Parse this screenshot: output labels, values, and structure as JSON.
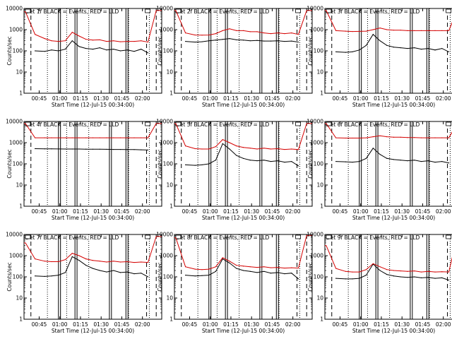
{
  "colors": {
    "events": "#000000",
    "lld": "#d40000",
    "axes": "#000000"
  },
  "shared": {
    "ylabel": "Counts/sec",
    "xlabel": "Start Time (12-Jul-15 00:34:00)",
    "xticks": [
      "00:45",
      "01:00",
      "01:15",
      "01:30",
      "01:45",
      "02:00"
    ],
    "yticks": [
      "1",
      "10",
      "100",
      "1000",
      "10000"
    ],
    "scale": "log",
    "xlim_minutes": [
      0,
      100
    ],
    "ylim": [
      1,
      10000
    ],
    "vline_dashed": [
      5,
      89,
      96
    ],
    "vline_dotted": [
      17,
      31,
      47,
      76,
      91
    ],
    "vline_solid": [
      25,
      26.5,
      37,
      38.5,
      62,
      63.5,
      74,
      75.5
    ]
  },
  "chart_data": [
    {
      "type": "line",
      "title": "Det 1f BLACK = Events, RED = LLD",
      "x": [
        8,
        15,
        20,
        25,
        30,
        35,
        40,
        45,
        50,
        55,
        60,
        65,
        70,
        75,
        80,
        85,
        90
      ],
      "series": [
        {
          "name": "Events",
          "values": [
            100,
            95,
            110,
            100,
            120,
            300,
            160,
            130,
            120,
            140,
            110,
            120,
            100,
            110,
            95,
            120,
            80
          ]
        },
        {
          "name": "LLD",
          "values": [
            600,
            380,
            300,
            280,
            300,
            750,
            500,
            350,
            320,
            330,
            280,
            300,
            270,
            280,
            280,
            300,
            260
          ]
        }
      ],
      "lld_ends": {
        "start": 7000,
        "end": 8000
      }
    },
    {
      "type": "line",
      "title": "Det 2f BLACK = Events, RED = LLD",
      "x": [
        8,
        15,
        20,
        25,
        30,
        35,
        40,
        45,
        50,
        55,
        60,
        65,
        70,
        75,
        80,
        85,
        90
      ],
      "series": [
        {
          "name": "Events",
          "values": [
            280,
            260,
            270,
            300,
            320,
            350,
            380,
            330,
            320,
            300,
            310,
            290,
            290,
            300,
            280,
            290,
            260
          ]
        },
        {
          "name": "LLD",
          "values": [
            700,
            560,
            550,
            560,
            650,
            900,
            1100,
            900,
            900,
            800,
            800,
            700,
            650,
            700,
            650,
            700,
            600
          ]
        }
      ],
      "lld_ends": {
        "start": 8000,
        "end": 8000
      }
    },
    {
      "type": "line",
      "title": "Det 3f BLACK = Events, RED = LLD",
      "x": [
        8,
        15,
        20,
        25,
        30,
        35,
        40,
        45,
        50,
        55,
        60,
        65,
        70,
        75,
        80,
        85,
        90
      ],
      "series": [
        {
          "name": "Events",
          "values": [
            90,
            85,
            90,
            110,
            180,
            600,
            300,
            180,
            150,
            140,
            130,
            140,
            120,
            130,
            110,
            130,
            90
          ]
        },
        {
          "name": "LLD",
          "values": [
            900,
            850,
            820,
            830,
            850,
            1000,
            1200,
            1000,
            950,
            950,
            900,
            900,
            900,
            900,
            900,
            900,
            900
          ]
        }
      ],
      "lld_ends": {
        "start": 8000,
        "end": 8000
      }
    },
    {
      "type": "line",
      "title": "Det 4f BLACK = Events, RED = LLD",
      "x": [
        8,
        15,
        20,
        25,
        30,
        35,
        40,
        45,
        50,
        55,
        60,
        65,
        70,
        75,
        80,
        85,
        90
      ],
      "series": [
        {
          "name": "Events",
          "values": [
            520,
            510,
            510,
            505,
            500,
            500,
            500,
            495,
            490,
            490,
            485,
            480,
            480,
            470,
            470,
            460,
            450
          ]
        },
        {
          "name": "LLD",
          "values": [
            1700,
            1700,
            1700,
            1700,
            1700,
            1700,
            1700,
            1700,
            1700,
            1700,
            1700,
            1700,
            1700,
            1700,
            1700,
            1700,
            1700
          ]
        }
      ],
      "lld_ends": {
        "start": 8000,
        "end": 8000
      }
    },
    {
      "type": "line",
      "title": "Det 5f BLACK = Events, RED = LLD",
      "x": [
        8,
        15,
        20,
        25,
        30,
        35,
        40,
        45,
        50,
        55,
        60,
        65,
        70,
        75,
        80,
        85,
        90
      ],
      "series": [
        {
          "name": "Events",
          "values": [
            90,
            85,
            90,
            100,
            150,
            900,
            500,
            250,
            180,
            150,
            140,
            150,
            130,
            140,
            120,
            130,
            80
          ]
        },
        {
          "name": "LLD",
          "values": [
            700,
            520,
            500,
            500,
            650,
            1400,
            1000,
            700,
            600,
            550,
            500,
            550,
            500,
            520,
            480,
            500,
            470
          ]
        }
      ],
      "lld_ends": {
        "start": 8000,
        "end": 8000
      }
    },
    {
      "type": "line",
      "title": "Det 6f BLACK = Events, RED = LLD",
      "x": [
        8,
        15,
        20,
        25,
        30,
        35,
        40,
        45,
        50,
        55,
        60,
        65,
        70,
        75,
        80,
        85,
        90
      ],
      "series": [
        {
          "name": "Events",
          "values": [
            130,
            125,
            120,
            130,
            180,
            550,
            280,
            180,
            160,
            150,
            140,
            150,
            130,
            140,
            120,
            130,
            110
          ]
        },
        {
          "name": "LLD",
          "values": [
            1700,
            1650,
            1650,
            1650,
            1700,
            1900,
            2100,
            1900,
            1800,
            1800,
            1750,
            1750,
            1700,
            1700,
            1700,
            1700,
            1700
          ]
        }
      ],
      "lld_ends": {
        "start": 8000,
        "end": 8000
      }
    },
    {
      "type": "line",
      "title": "Det 7f BLACK = Events, RED = LLD",
      "x": [
        8,
        15,
        20,
        25,
        30,
        35,
        40,
        45,
        50,
        55,
        60,
        65,
        70,
        75,
        80,
        85,
        90
      ],
      "series": [
        {
          "name": "Events",
          "values": [
            110,
            105,
            110,
            120,
            160,
            900,
            600,
            350,
            250,
            200,
            170,
            200,
            160,
            170,
            140,
            150,
            100
          ]
        },
        {
          "name": "LLD",
          "values": [
            700,
            550,
            520,
            520,
            650,
            1300,
            1000,
            700,
            600,
            550,
            500,
            550,
            500,
            520,
            480,
            500,
            480
          ]
        }
      ],
      "lld_ends": {
        "start": 4000,
        "end": 8000
      }
    },
    {
      "type": "line",
      "title": "Det 8f BLACK = Events, RED = LLD",
      "x": [
        8,
        15,
        20,
        25,
        30,
        35,
        40,
        45,
        50,
        55,
        60,
        65,
        70,
        75,
        80,
        85,
        90
      ],
      "series": [
        {
          "name": "Events",
          "values": [
            120,
            110,
            115,
            120,
            180,
            700,
            450,
            250,
            200,
            180,
            160,
            180,
            150,
            160,
            140,
            150,
            80
          ]
        },
        {
          "name": "LLD",
          "values": [
            300,
            230,
            220,
            230,
            300,
            800,
            550,
            350,
            320,
            300,
            280,
            300,
            270,
            280,
            260,
            270,
            260
          ]
        }
      ],
      "lld_ends": {
        "start": 7000,
        "end": 9000
      }
    },
    {
      "type": "line",
      "title": "Det 9f BLACK = Events, RED = LLD",
      "x": [
        8,
        15,
        20,
        25,
        30,
        35,
        40,
        45,
        50,
        55,
        60,
        65,
        70,
        75,
        80,
        85,
        90
      ],
      "series": [
        {
          "name": "Events",
          "values": [
            85,
            80,
            80,
            85,
            120,
            400,
            200,
            130,
            110,
            100,
            95,
            100,
            90,
            95,
            85,
            90,
            70
          ]
        },
        {
          "name": "LLD",
          "values": [
            250,
            180,
            170,
            170,
            220,
            420,
            300,
            220,
            200,
            190,
            180,
            190,
            170,
            180,
            170,
            175,
            170
          ]
        }
      ],
      "lld_ends": {
        "start": 3000,
        "end": 8000
      }
    }
  ]
}
